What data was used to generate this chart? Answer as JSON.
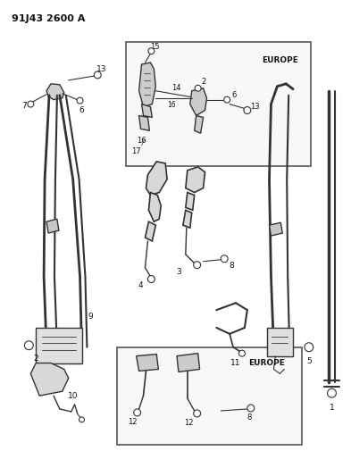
{
  "title": "91J43 2600 A",
  "bg": "#ffffff",
  "lc": "#333333",
  "tc": "#111111",
  "fw": 3.93,
  "fh": 5.33,
  "dpi": 100
}
